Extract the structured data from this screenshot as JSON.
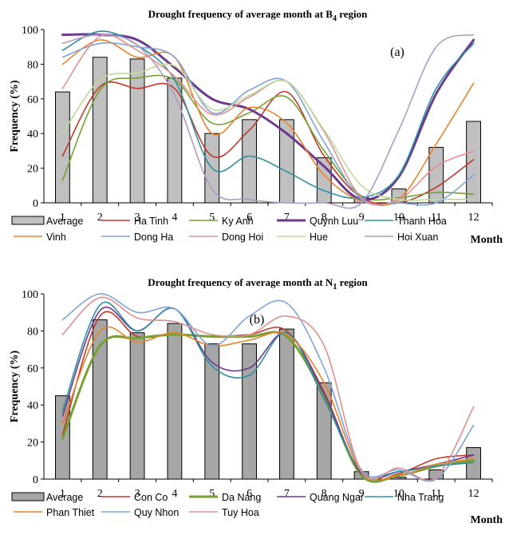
{
  "chart_data": [
    {
      "type": "bar",
      "title": "Drought frequency of average month at B",
      "title_sub": "4",
      "title_tail": " region",
      "panel_label": "(a)",
      "xlabel": "Month",
      "ylabel": "Frequency (%)",
      "ylim": [
        0,
        100
      ],
      "yticks": [
        "0",
        "20",
        "40",
        "60",
        "80",
        "100"
      ],
      "categories": [
        "1",
        "2",
        "3",
        "4",
        "5",
        "6",
        "7",
        "8",
        "9",
        "10",
        "11",
        "12"
      ],
      "bars": {
        "name": "Average",
        "color": "#c0c0c0",
        "values": [
          64,
          84,
          83,
          72,
          40,
          48,
          48,
          26,
          3,
          8,
          32,
          47
        ]
      },
      "series": [
        {
          "name": "Ha Tinh",
          "color": "#c0392b",
          "width": 1.6,
          "values": [
            27,
            67,
            66,
            66,
            27,
            42,
            64,
            27,
            3,
            0,
            9,
            25
          ]
        },
        {
          "name": "Ky Anh",
          "color": "#77a033",
          "width": 1.6,
          "values": [
            13,
            65,
            72,
            71,
            46,
            52,
            61,
            30,
            4,
            3,
            6,
            5
          ]
        },
        {
          "name": "Quynh Luu",
          "color": "#6b3a8e",
          "width": 3,
          "values": [
            97,
            97,
            94,
            78,
            60,
            54,
            40,
            21,
            2,
            15,
            63,
            94
          ]
        },
        {
          "name": "Thanh Hoa",
          "color": "#2e8fa3",
          "width": 1.6,
          "values": [
            88,
            99,
            91,
            71,
            20,
            27,
            18,
            7,
            3,
            16,
            66,
            92
          ]
        },
        {
          "name": "Vinh",
          "color": "#e8822b",
          "width": 1.6,
          "values": [
            80,
            94,
            84,
            84,
            40,
            55,
            46,
            16,
            1,
            2,
            34,
            69
          ]
        },
        {
          "name": "Dong Ha",
          "color": "#7fa4d6",
          "width": 1.6,
          "values": [
            84,
            92,
            90,
            84,
            52,
            65,
            70,
            35,
            2,
            0,
            0,
            16
          ]
        },
        {
          "name": "Dong Hoi",
          "color": "#e09090",
          "width": 1.6,
          "values": [
            66,
            96,
            88,
            73,
            51,
            61,
            70,
            41,
            3,
            2,
            21,
            30
          ]
        },
        {
          "name": "Hue",
          "color": "#bfd89a",
          "width": 1.6,
          "values": [
            40,
            71,
            75,
            79,
            54,
            62,
            70,
            42,
            10,
            2,
            2,
            2
          ]
        },
        {
          "name": "Hoi Xuan",
          "color": "#b09ac4",
          "width": 1.6,
          "values": [
            92,
            97,
            91,
            62,
            8,
            2,
            0,
            0,
            0,
            42,
            90,
            97
          ]
        }
      ],
      "legend": "bottom"
    },
    {
      "type": "bar",
      "title": "Drought frequency of average month at N",
      "title_sub": "1",
      "title_tail": " region",
      "panel_label": "(b)",
      "xlabel": "Month",
      "ylabel": "Frequency (%)",
      "ylim": [
        0,
        100
      ],
      "yticks": [
        "0",
        "20",
        "40",
        "60",
        "80",
        "100"
      ],
      "categories": [
        "1",
        "2",
        "3",
        "4",
        "5",
        "6",
        "7",
        "8",
        "9",
        "10",
        "11",
        "12"
      ],
      "bars": {
        "name": "Average",
        "color": "#a6a6a6",
        "values": [
          45,
          86,
          79,
          84,
          73,
          73,
          81,
          52,
          4,
          1,
          5,
          17
        ]
      },
      "series": [
        {
          "name": "Con Co",
          "color": "#c0392b",
          "width": 1.6,
          "values": [
            24,
            88,
            77,
            78,
            77,
            78,
            80,
            47,
            2,
            3,
            11,
            13
          ]
        },
        {
          "name": "Da Nang",
          "color": "#77a033",
          "width": 3,
          "values": [
            22,
            72,
            76,
            78,
            77,
            77,
            77,
            45,
            2,
            2,
            7,
            10
          ]
        },
        {
          "name": "Quang Ngai",
          "color": "#6b3a8e",
          "width": 1.6,
          "values": [
            34,
            91,
            80,
            92,
            63,
            60,
            79,
            46,
            3,
            4,
            8,
            13
          ]
        },
        {
          "name": "Nha Trang",
          "color": "#2e8fa3",
          "width": 1.6,
          "values": [
            37,
            94,
            80,
            92,
            61,
            56,
            79,
            43,
            4,
            4,
            7,
            9
          ]
        },
        {
          "name": "Phan Thiet",
          "color": "#e8822b",
          "width": 1.6,
          "values": [
            30,
            80,
            74,
            79,
            72,
            75,
            78,
            52,
            4,
            2,
            8,
            11
          ]
        },
        {
          "name": "Quy Nhon",
          "color": "#7fa4d6",
          "width": 1.6,
          "values": [
            86,
            100,
            90,
            92,
            72,
            88,
            95,
            60,
            5,
            5,
            0,
            29
          ]
        },
        {
          "name": "Tuy Hoa",
          "color": "#e09090",
          "width": 1.6,
          "values": [
            78,
            98,
            87,
            85,
            78,
            78,
            88,
            72,
            4,
            6,
            1,
            39
          ]
        }
      ],
      "legend": "bottom"
    }
  ]
}
